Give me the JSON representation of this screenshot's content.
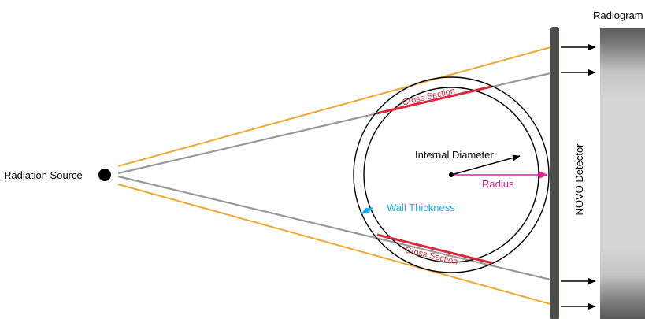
{
  "labels": {
    "radiation_source": "Radiation Source",
    "radiogram": "Radiogram",
    "detector": "NOVO Detector",
    "internal_diameter": "Internal Diameter",
    "radius": "Radius",
    "wall_thickness": "Wall Thickness",
    "cross_section_top": "Cross Section",
    "cross_section_bottom": "Cross Section"
  },
  "colors": {
    "outer_beam": "#f0a830",
    "inner_beam": "#999999",
    "cross_section": "#d8283c",
    "radius": "#e0229a",
    "wall_thickness": "#1aaee5",
    "detector": "#4a4d4a",
    "source": "#000000"
  }
}
